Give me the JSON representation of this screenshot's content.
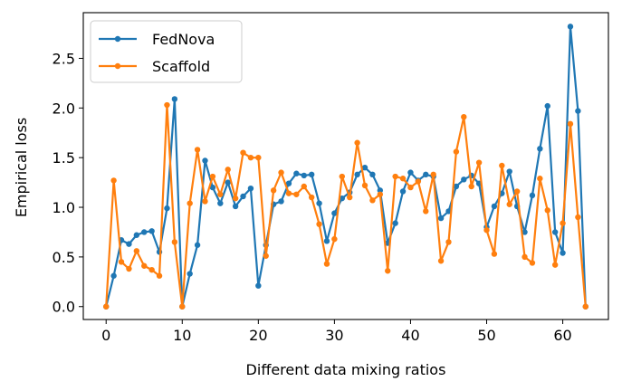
{
  "chart_data": {
    "type": "line",
    "title": "",
    "xlabel": "Different data mixing ratios",
    "ylabel": "Empirical loss",
    "xlim": [
      -3,
      66
    ],
    "ylim": [
      -0.13,
      2.96
    ],
    "xticks": [
      0,
      10,
      20,
      30,
      40,
      50,
      60
    ],
    "yticks": [
      0.0,
      0.5,
      1.0,
      1.5,
      2.0,
      2.5
    ],
    "xtick_labels": [
      "0",
      "10",
      "20",
      "30",
      "40",
      "50",
      "60"
    ],
    "ytick_labels": [
      "0.0",
      "0.5",
      "1.0",
      "1.5",
      "2.0",
      "2.5"
    ],
    "grid": false,
    "legend_position": "upper-left",
    "x": [
      0,
      1,
      2,
      3,
      4,
      5,
      6,
      7,
      8,
      9,
      10,
      11,
      12,
      13,
      14,
      15,
      16,
      17,
      18,
      19,
      20,
      21,
      22,
      23,
      24,
      25,
      26,
      27,
      28,
      29,
      30,
      31,
      32,
      33,
      34,
      35,
      36,
      37,
      38,
      39,
      40,
      41,
      42,
      43,
      44,
      45,
      46,
      47,
      48,
      49,
      50,
      51,
      52,
      53,
      54,
      55,
      56,
      57,
      58,
      59,
      60,
      61,
      62,
      63
    ],
    "series": [
      {
        "name": "FedNova",
        "color": "#1f77b4",
        "values": [
          0.0,
          0.31,
          0.67,
          0.63,
          0.72,
          0.75,
          0.76,
          0.55,
          0.99,
          2.09,
          0.0,
          0.33,
          0.62,
          1.47,
          1.2,
          1.04,
          1.25,
          1.01,
          1.11,
          1.19,
          0.21,
          0.62,
          1.03,
          1.06,
          1.24,
          1.34,
          1.32,
          1.33,
          1.04,
          0.66,
          0.94,
          1.09,
          1.15,
          1.33,
          1.4,
          1.33,
          1.17,
          0.64,
          0.84,
          1.16,
          1.35,
          1.27,
          1.33,
          1.31,
          0.89,
          0.96,
          1.21,
          1.28,
          1.32,
          1.24,
          0.8,
          1.01,
          1.14,
          1.36,
          1.01,
          0.75,
          1.12,
          1.59,
          2.02,
          0.75,
          0.54,
          2.82,
          1.97,
          0.0
        ]
      },
      {
        "name": "Scaffold",
        "color": "#ff7f0e",
        "values": [
          0.0,
          1.27,
          0.45,
          0.38,
          0.56,
          0.41,
          0.37,
          0.31,
          2.03,
          0.65,
          0.0,
          1.04,
          1.58,
          1.06,
          1.31,
          1.13,
          1.38,
          1.09,
          1.55,
          1.5,
          1.5,
          0.51,
          1.17,
          1.35,
          1.14,
          1.13,
          1.21,
          1.1,
          0.83,
          0.43,
          0.68,
          1.31,
          1.1,
          1.65,
          1.22,
          1.07,
          1.13,
          0.36,
          1.31,
          1.29,
          1.2,
          1.26,
          0.96,
          1.33,
          0.46,
          0.65,
          1.56,
          1.91,
          1.21,
          1.45,
          0.77,
          0.53,
          1.42,
          1.03,
          1.16,
          0.5,
          0.44,
          1.29,
          0.97,
          0.42,
          0.84,
          1.84,
          0.9,
          0.0
        ]
      }
    ]
  }
}
